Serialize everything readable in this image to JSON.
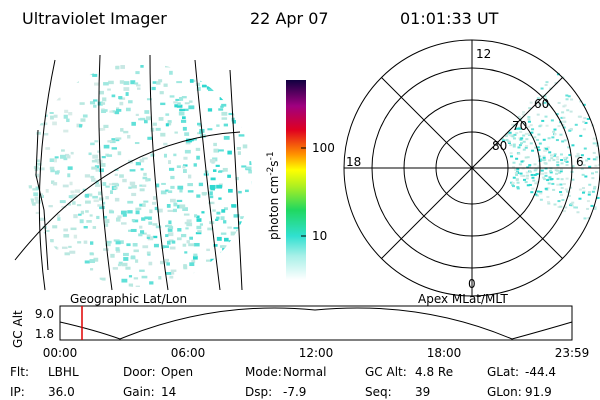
{
  "header": {
    "instrument": "Ultraviolet Imager",
    "date": "22 Apr 07",
    "time": "01:01:33 UT"
  },
  "left_panel": {
    "label": "Geographic Lat/Lon"
  },
  "colorbar": {
    "label": {
      "base": "photon cm",
      "exp1": "-2",
      "mid": "s",
      "exp2": "-1"
    },
    "ticks": [
      "100",
      "10"
    ]
  },
  "polar": {
    "label": "Apex MLat/MLT",
    "mlt": {
      "top": "12",
      "left": "18",
      "right": "6",
      "bottom": "0"
    },
    "rings": [
      "80",
      "70",
      "60"
    ]
  },
  "timeline": {
    "ylabel": "GC Alt",
    "yticks": [
      "9.0",
      "1.8"
    ],
    "xticks": [
      "00:00",
      "06:00",
      "12:00",
      "18:00",
      "23:59"
    ]
  },
  "footer": [
    {
      "label": "Flt:",
      "value": "LBHL"
    },
    {
      "label": "Door:",
      "value": "Open"
    },
    {
      "label": "Mode:",
      "value": "Normal"
    },
    {
      "label": "GC Alt:",
      "value": "4.8 Re"
    },
    {
      "label": "GLat:",
      "value": "-44.4"
    },
    {
      "label": "IP:",
      "value": "36.0"
    },
    {
      "label": "Gain:",
      "value": "14"
    },
    {
      "label": "Dsp:",
      "value": "-7.9"
    },
    {
      "label": "Seq:",
      "value": "39"
    },
    {
      "label": "GLon:",
      "value": "91.9"
    }
  ]
}
